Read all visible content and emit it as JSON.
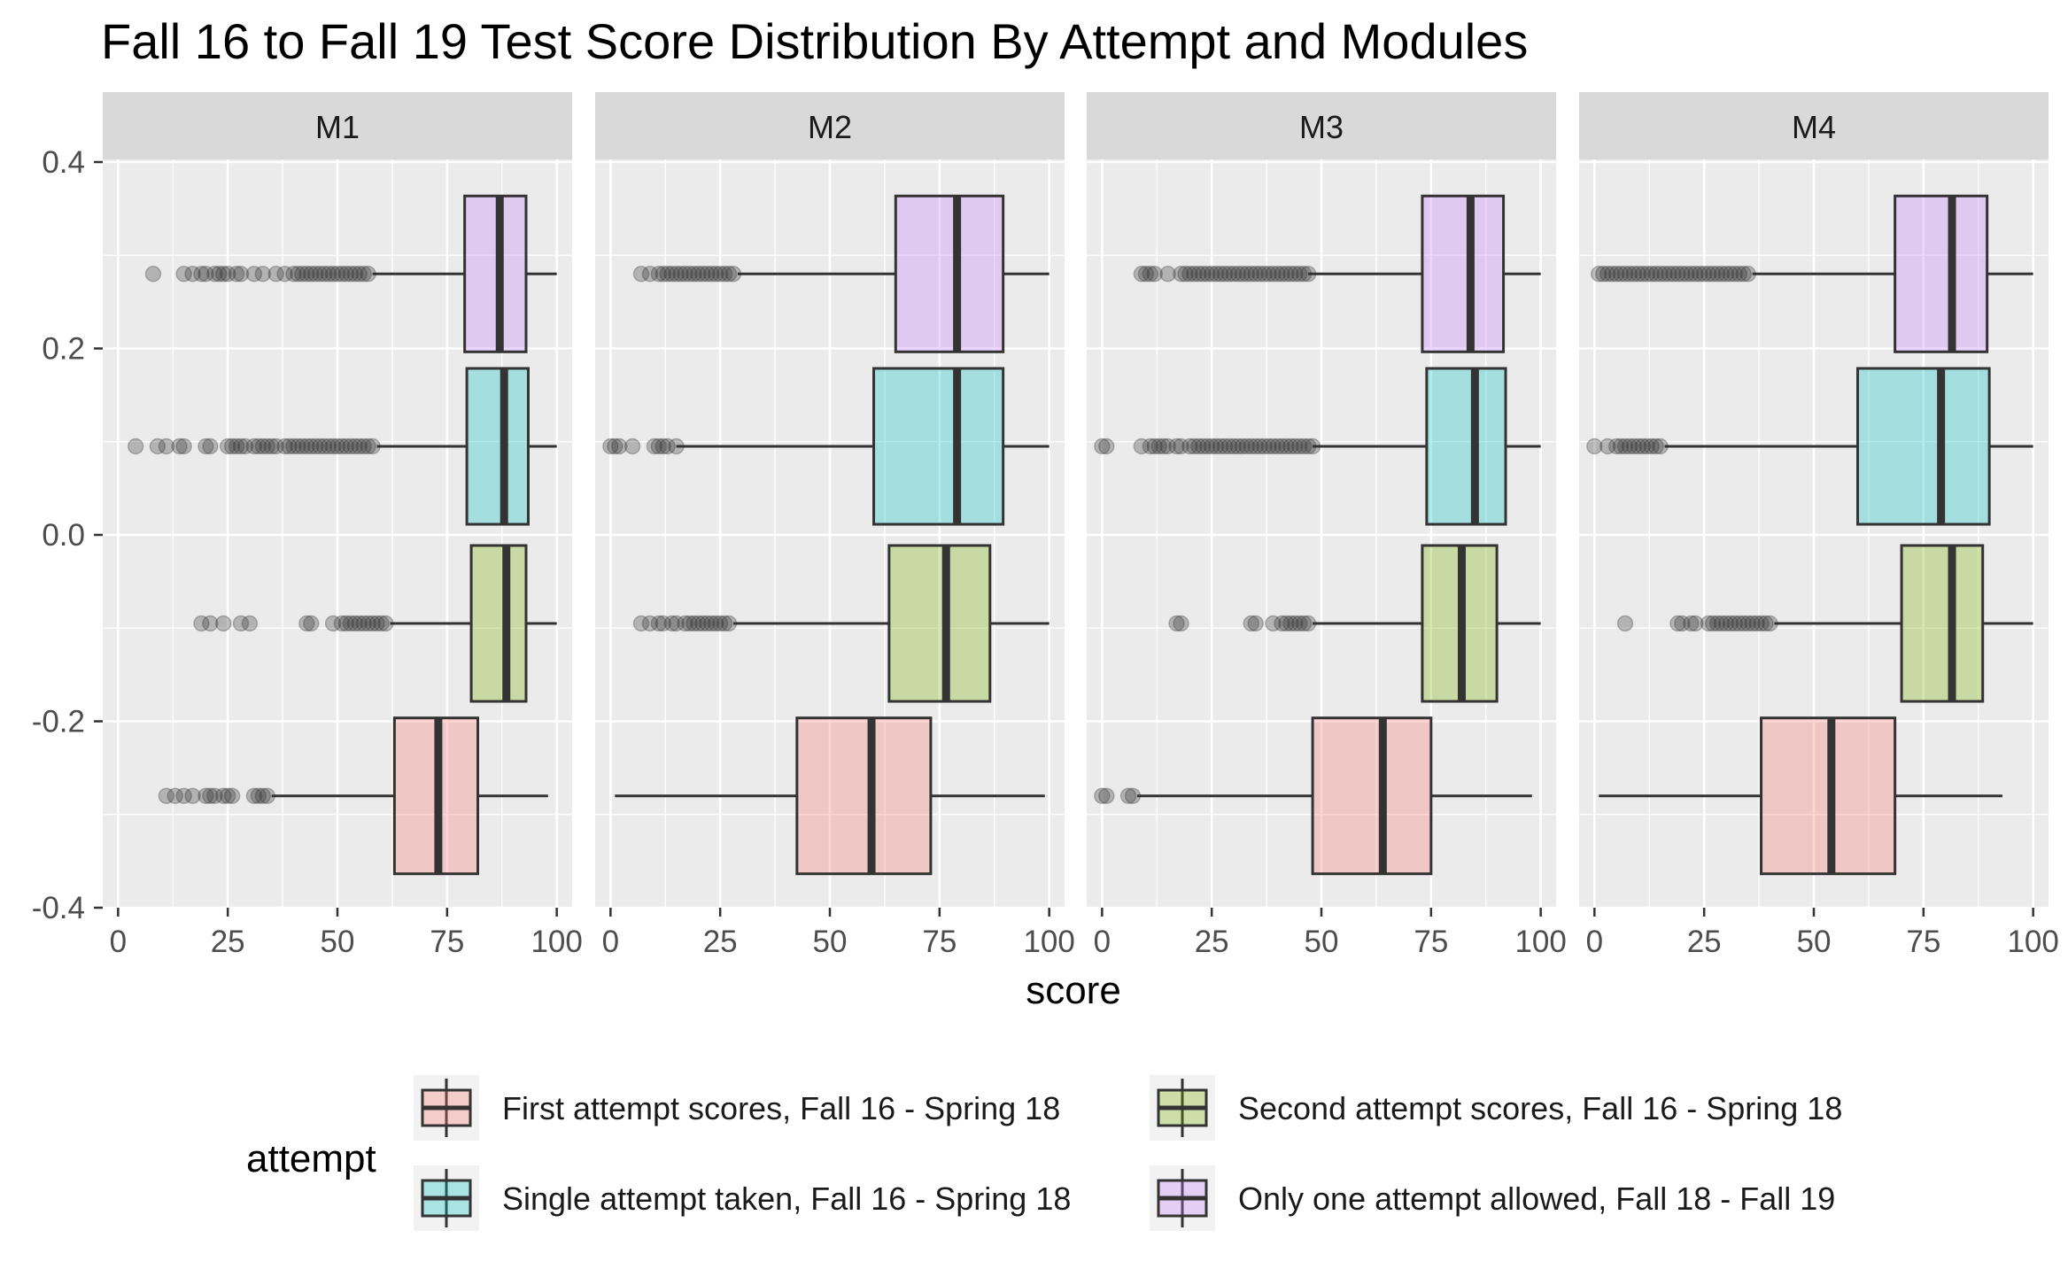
{
  "chart_data": {
    "type": "boxplot",
    "title": "Fall 16 to Fall 19 Test Score Distribution By Attempt and Modules",
    "xlabel": "score",
    "ylabel": "",
    "xlim": [
      -3.5,
      103.5
    ],
    "ylim": [
      -0.4,
      0.45
    ],
    "x_ticks": [
      0,
      25,
      50,
      75,
      100
    ],
    "y_ticks": [
      -0.4,
      -0.2,
      0.0,
      0.2,
      0.4
    ],
    "y_tick_labels": [
      "-0.4",
      "-0.2",
      "0.0",
      "0.2",
      "0.4"
    ],
    "grid": true,
    "legend": {
      "title": "attempt",
      "position": "bottom",
      "entries": [
        {
          "key": "first",
          "label": "First attempt scores, Fall 16 - Spring 18",
          "color": "#F8766D"
        },
        {
          "key": "second",
          "label": "Second attempt scores, Fall 16 - Spring 18",
          "color": "#7CAE00"
        },
        {
          "key": "single",
          "label": "Single attempt taken, Fall 16 - Spring 18",
          "color": "#00BFC4"
        },
        {
          "key": "only",
          "label": "Only one attempt allowed, Fall 18 - Fall 19",
          "color": "#C77CFF"
        }
      ]
    },
    "panels": [
      {
        "name": "M1",
        "boxes": [
          {
            "series": "only",
            "y": 0.28,
            "min": 58,
            "q1": 79,
            "median": 87,
            "q3": 93,
            "max": 100,
            "outliers": [
              8,
              15,
              17,
              19,
              20,
              22,
              23,
              24,
              25,
              27,
              28,
              31,
              33,
              36,
              38,
              40,
              41,
              42,
              43,
              44,
              45,
              46,
              47,
              48,
              49,
              50,
              51,
              52,
              53,
              54,
              55,
              56,
              57
            ]
          },
          {
            "series": "single",
            "y": 0.095,
            "min": 59,
            "q1": 79.5,
            "median": 88,
            "q3": 93.5,
            "max": 100,
            "outliers": [
              4,
              9,
              11,
              14,
              15,
              20,
              21,
              25,
              26,
              27,
              28,
              29,
              31,
              32,
              33,
              34,
              35,
              36,
              38,
              39,
              40,
              41,
              42,
              43,
              44,
              45,
              46,
              47,
              48,
              49,
              50,
              51,
              52,
              53,
              54,
              55,
              56,
              57,
              58
            ]
          },
          {
            "series": "second",
            "y": -0.095,
            "min": 62,
            "q1": 80.5,
            "median": 88.5,
            "q3": 93,
            "max": 100,
            "outliers": [
              19,
              21,
              24,
              28,
              30,
              43,
              44,
              49,
              51,
              52,
              53,
              54,
              55,
              56,
              57,
              58,
              59,
              60,
              61
            ]
          },
          {
            "series": "first",
            "y": -0.28,
            "min": 35,
            "q1": 63,
            "median": 73,
            "q3": 82,
            "max": 98,
            "outliers": [
              11,
              13,
              15,
              17,
              20,
              21,
              22,
              24,
              25,
              26,
              31,
              32,
              33,
              34
            ]
          }
        ]
      },
      {
        "name": "M2",
        "boxes": [
          {
            "series": "only",
            "y": 0.28,
            "min": 29,
            "q1": 65,
            "median": 79,
            "q3": 89.5,
            "max": 100,
            "outliers": [
              7,
              9,
              11,
              12,
              13,
              14,
              15,
              16,
              17,
              18,
              19,
              20,
              21,
              22,
              23,
              24,
              25,
              26,
              27,
              28
            ]
          },
          {
            "series": "single",
            "y": 0.095,
            "min": 15,
            "q1": 60,
            "median": 79,
            "q3": 89.5,
            "max": 100,
            "outliers": [
              0,
              1,
              2,
              5,
              10,
              11,
              12,
              13,
              15
            ]
          },
          {
            "series": "second",
            "y": -0.095,
            "min": 28,
            "q1": 63.5,
            "median": 76.5,
            "q3": 86.5,
            "max": 100,
            "outliers": [
              7,
              9,
              11,
              12,
              14,
              15,
              17,
              18,
              19,
              20,
              21,
              22,
              23,
              24,
              25,
              26,
              27
            ]
          },
          {
            "series": "first",
            "y": -0.28,
            "min": 1,
            "q1": 42.5,
            "median": 59.5,
            "q3": 73,
            "max": 99,
            "outliers": []
          }
        ]
      },
      {
        "name": "M3",
        "boxes": [
          {
            "series": "only",
            "y": 0.28,
            "min": 47,
            "q1": 73,
            "median": 84,
            "q3": 91.5,
            "max": 100,
            "outliers": [
              9,
              10,
              11,
              12,
              15,
              18,
              19,
              20,
              21,
              22,
              23,
              24,
              25,
              26,
              27,
              28,
              29,
              30,
              31,
              32,
              33,
              34,
              35,
              36,
              37,
              38,
              39,
              40,
              41,
              42,
              43,
              44,
              45,
              46,
              47
            ]
          },
          {
            "series": "single",
            "y": 0.095,
            "min": 48,
            "q1": 74,
            "median": 85,
            "q3": 92,
            "max": 100,
            "outliers": [
              0,
              1,
              9,
              11,
              12,
              13,
              14,
              15,
              17,
              18,
              20,
              21,
              22,
              23,
              24,
              25,
              26,
              27,
              28,
              29,
              30,
              31,
              32,
              33,
              34,
              35,
              36,
              37,
              38,
              39,
              40,
              41,
              42,
              43,
              44,
              45,
              46,
              47,
              48
            ]
          },
          {
            "series": "second",
            "y": -0.095,
            "min": 48,
            "q1": 73,
            "median": 82,
            "q3": 90,
            "max": 100,
            "outliers": [
              17,
              18,
              34,
              35,
              39,
              41,
              42,
              43,
              44,
              45,
              46,
              47
            ]
          },
          {
            "series": "first",
            "y": -0.28,
            "min": 8,
            "q1": 48,
            "median": 64,
            "q3": 75,
            "max": 98,
            "outliers": [
              0,
              1,
              6,
              7
            ]
          }
        ]
      },
      {
        "name": "M4",
        "boxes": [
          {
            "series": "only",
            "y": 0.28,
            "min": 36,
            "q1": 68.5,
            "median": 81.5,
            "q3": 89.5,
            "max": 100,
            "outliers": [
              1,
              2,
              3,
              4,
              5,
              6,
              7,
              8,
              9,
              10,
              11,
              12,
              13,
              14,
              15,
              16,
              17,
              18,
              19,
              20,
              21,
              22,
              23,
              24,
              25,
              26,
              27,
              28,
              29,
              30,
              31,
              32,
              33,
              34,
              35
            ]
          },
          {
            "series": "single",
            "y": 0.095,
            "min": 16,
            "q1": 60,
            "median": 79,
            "q3": 90,
            "max": 100,
            "outliers": [
              0,
              3,
              5,
              6,
              7,
              8,
              9,
              10,
              11,
              12,
              13,
              14,
              15
            ]
          },
          {
            "series": "second",
            "y": -0.095,
            "min": 41,
            "q1": 70,
            "median": 81.5,
            "q3": 88.5,
            "max": 100,
            "outliers": [
              7,
              19,
              20,
              22,
              23,
              26,
              27,
              28,
              29,
              30,
              31,
              32,
              33,
              34,
              35,
              36,
              37,
              38,
              39,
              40
            ]
          },
          {
            "series": "first",
            "y": -0.28,
            "min": 1,
            "q1": 38,
            "median": 54,
            "q3": 68.5,
            "max": 93,
            "outliers": []
          }
        ]
      }
    ]
  }
}
